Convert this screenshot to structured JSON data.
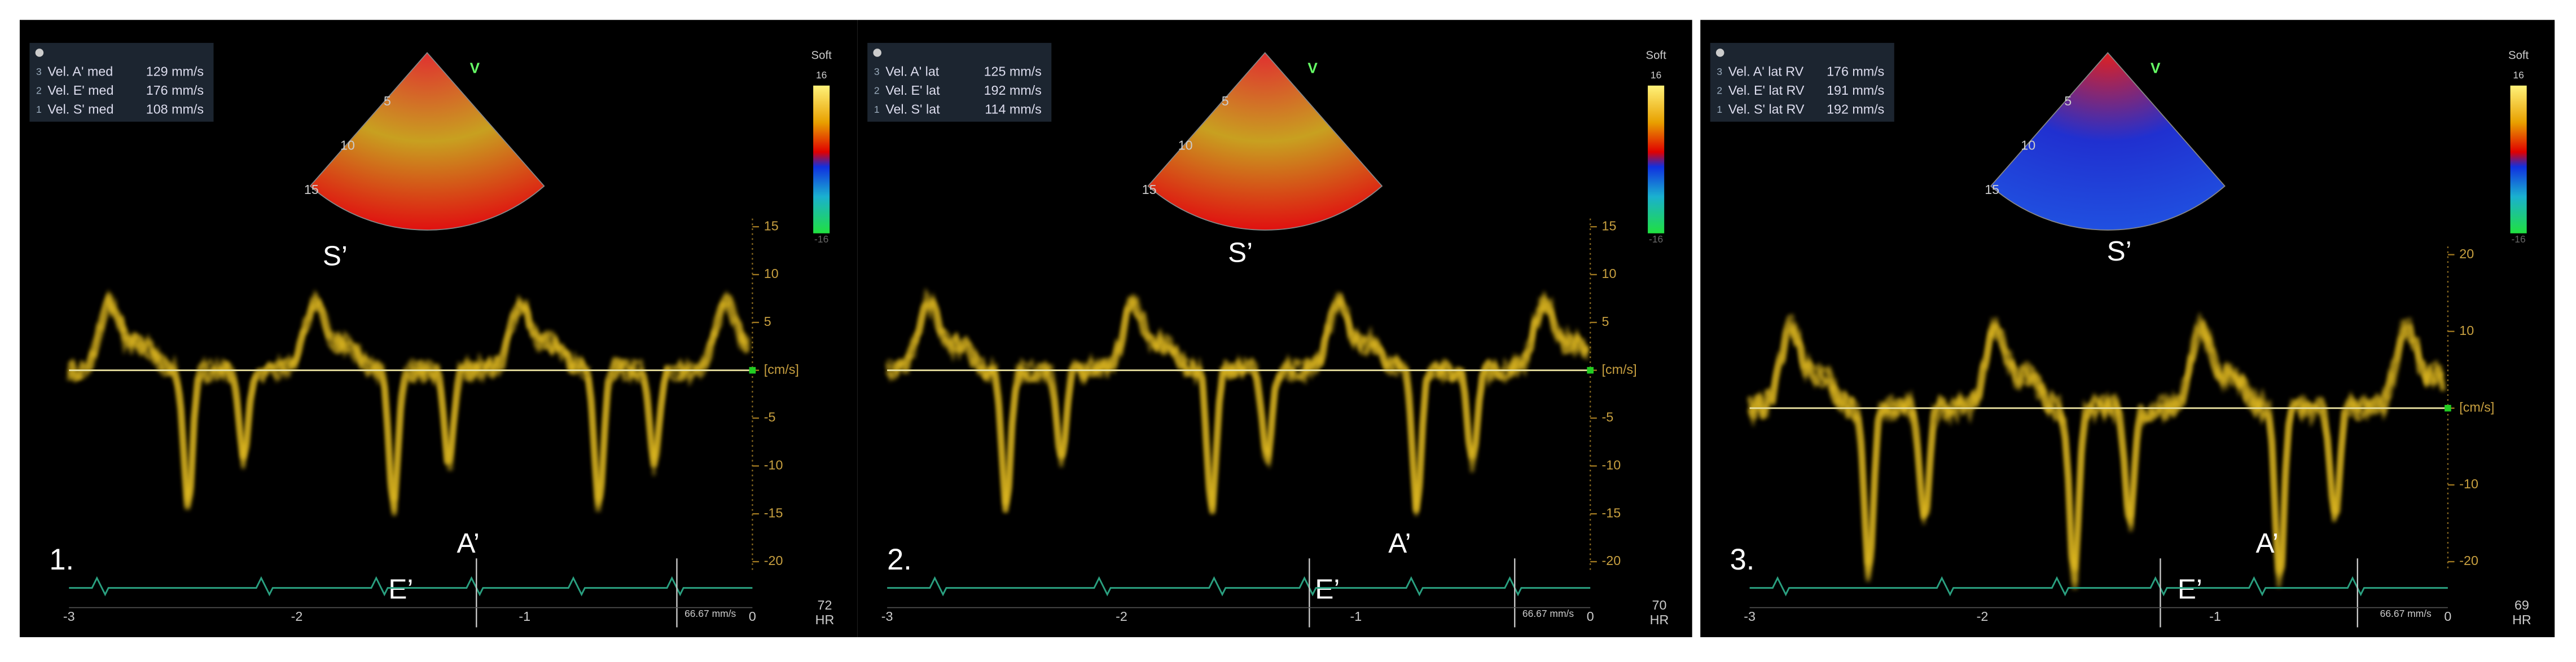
{
  "panels": [
    {
      "number": "1.",
      "measurements": [
        {
          "index": "3",
          "label": "Vel. A' med",
          "value": "129 mm/s"
        },
        {
          "index": "2",
          "label": "Vel. E' med",
          "value": "176 mm/s"
        },
        {
          "index": "1",
          "label": "Vel. S' med",
          "value": "108 mm/s"
        }
      ],
      "depth_labels": [
        "5",
        "10",
        "15"
      ],
      "mode": "V",
      "scale": {
        "name": "Soft",
        "top": "16",
        "bottom": "-16"
      },
      "velocity_ticks": [
        "15",
        "10",
        "5",
        "[cm/s]",
        "-5",
        "-10",
        "-15",
        "-20"
      ],
      "time_ticks": [
        "-3",
        "-2",
        "-1",
        "0"
      ],
      "sweep": "66.67 mm/s",
      "hr": "72",
      "hr_label": "HR",
      "wave_labels": {
        "s": "S’",
        "e": "E’",
        "a": "A’"
      }
    },
    {
      "number": "2.",
      "measurements": [
        {
          "index": "3",
          "label": "Vel. A' lat",
          "value": "125 mm/s"
        },
        {
          "index": "2",
          "label": "Vel. E' lat",
          "value": "192 mm/s"
        },
        {
          "index": "1",
          "label": "Vel. S' lat",
          "value": "114 mm/s"
        }
      ],
      "depth_labels": [
        "5",
        "10",
        "15"
      ],
      "mode": "V",
      "scale": {
        "name": "Soft",
        "top": "16",
        "bottom": "-16"
      },
      "velocity_ticks": [
        "15",
        "10",
        "5",
        "[cm/s]",
        "-5",
        "-10",
        "-15",
        "-20"
      ],
      "time_ticks": [
        "-3",
        "-2",
        "-1",
        "0"
      ],
      "sweep": "66.67 mm/s",
      "hr": "70",
      "hr_label": "HR",
      "wave_labels": {
        "s": "S’",
        "e": "E’",
        "a": "A’"
      }
    },
    {
      "number": "3.",
      "measurements": [
        {
          "index": "3",
          "label": "Vel. A' lat RV",
          "value": "176 mm/s"
        },
        {
          "index": "2",
          "label": "Vel. E' lat RV",
          "value": "191 mm/s"
        },
        {
          "index": "1",
          "label": "Vel. S' lat RV",
          "value": "192 mm/s"
        }
      ],
      "depth_labels": [
        "5",
        "10",
        "15"
      ],
      "mode": "V",
      "scale": {
        "name": "Soft",
        "top": "16",
        "bottom": "-16"
      },
      "velocity_ticks": [
        "20",
        "10",
        "[cm/s]",
        "-10",
        "-20"
      ],
      "time_ticks": [
        "-3",
        "-2",
        "-1",
        "0"
      ],
      "sweep": "66.67 mm/s",
      "hr": "69",
      "hr_label": "HR",
      "wave_labels": {
        "s": "S’",
        "e": "E’",
        "a": "A’"
      }
    }
  ]
}
